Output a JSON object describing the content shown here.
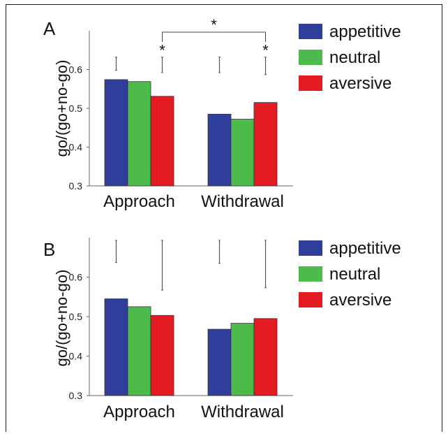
{
  "chart_data": [
    {
      "type": "bar",
      "panel_label": "A",
      "categories": [
        "Approach",
        "Withdrawal"
      ],
      "series": [
        {
          "name": "appetitive",
          "values": [
            0.574,
            0.485
          ]
        },
        {
          "name": "neutral",
          "values": [
            0.569,
            0.472
          ]
        },
        {
          "name": "aversive",
          "values": [
            0.531,
            0.515
          ]
        }
      ],
      "colors": [
        "#2e3e9a",
        "#4cbb4c",
        "#e31b23"
      ],
      "ylabel": "go/(go+no-go)",
      "ylim": [
        0.3,
        0.7
      ],
      "yticks": [
        "0.3",
        "0.4",
        "0.5",
        "0.6"
      ],
      "error_bars": [
        {
          "category": "Approach",
          "series": "appetitive",
          "low": 0.598,
          "high": 0.632
        },
        {
          "category": "Approach",
          "series": "aversive",
          "low": 0.592,
          "high": 0.632
        },
        {
          "category": "Withdrawal",
          "series": "appetitive",
          "low": 0.592,
          "high": 0.632
        },
        {
          "category": "Withdrawal",
          "series": "aversive",
          "low": 0.587,
          "high": 0.632
        }
      ],
      "annotations": [
        {
          "text": "*",
          "target": "Approach aversive"
        },
        {
          "text": "*",
          "target": "Withdrawal aversive"
        },
        {
          "text": "*",
          "target": "bracket Approach aversive – Withdrawal aversive"
        }
      ],
      "legend": "right",
      "grid": false
    },
    {
      "type": "bar",
      "panel_label": "B",
      "categories": [
        "Approach",
        "Withdrawal"
      ],
      "series": [
        {
          "name": "appetitive",
          "values": [
            0.545,
            0.468
          ]
        },
        {
          "name": "neutral",
          "values": [
            0.525,
            0.483
          ]
        },
        {
          "name": "aversive",
          "values": [
            0.503,
            0.495
          ]
        }
      ],
      "colors": [
        "#2e3e9a",
        "#4cbb4c",
        "#e31b23"
      ],
      "ylabel": "go/(go+no-go)",
      "ylim": [
        0.3,
        0.7
      ],
      "yticks": [
        "0.3",
        "0.4",
        "0.5",
        "0.6"
      ],
      "error_bars": [
        {
          "category": "Approach",
          "series": "appetitive",
          "low": 0.637,
          "high": 0.693
        },
        {
          "category": "Approach",
          "series": "aversive",
          "low": 0.567,
          "high": 0.693
        },
        {
          "category": "Withdrawal",
          "series": "appetitive",
          "low": 0.635,
          "high": 0.693
        },
        {
          "category": "Withdrawal",
          "series": "aversive",
          "low": 0.573,
          "high": 0.693
        }
      ],
      "annotations": [],
      "legend": "right",
      "grid": false
    }
  ]
}
